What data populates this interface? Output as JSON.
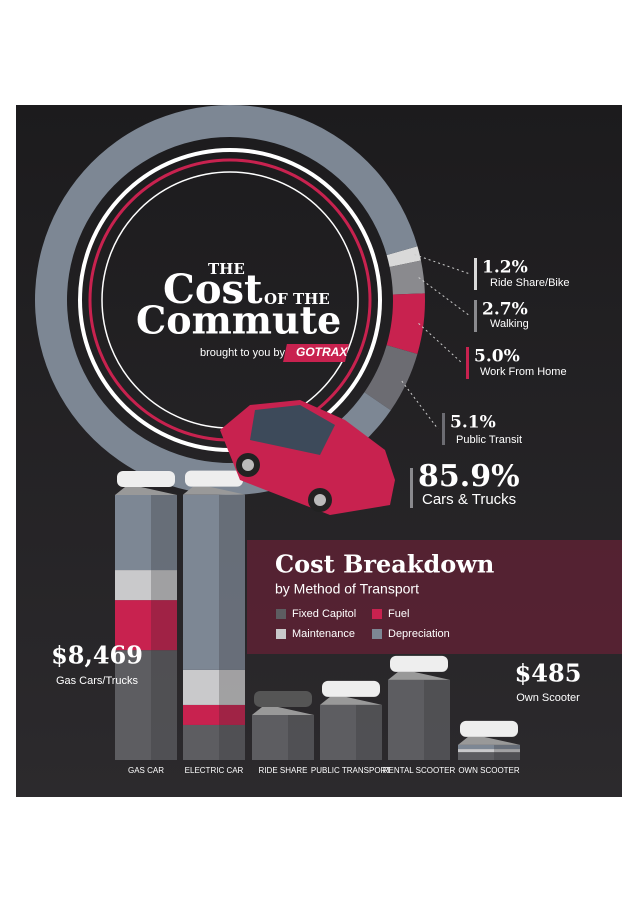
{
  "header": {
    "title_the": "THE",
    "title_cost": "Cost",
    "title_of_the": "OF THE",
    "title_commute": "Commute",
    "byline": "brought to you by",
    "brand": "GOTRAX"
  },
  "chart_data": [
    {
      "type": "pie",
      "categories": [
        "Ride Share/Bike",
        "Walking",
        "Work From Home",
        "Public Transit",
        "Cars & Trucks"
      ],
      "values": [
        1.2,
        2.7,
        5.0,
        5.1,
        85.9
      ],
      "value_labels": [
        "1.2%",
        "2.7%",
        "5.0%",
        "5.1%",
        "85.9%"
      ],
      "colors": [
        "#d9d9d9",
        "#8a8a8e",
        "#c8224f",
        "#6c6c72",
        "#7d8794"
      ]
    },
    {
      "type": "bar",
      "stacked": true,
      "title": "Cost Breakdown",
      "subtitle": "by Method of Transport",
      "categories": [
        "GAS CAR",
        "ELECTRIC CAR",
        "RIDE SHARE",
        "PUBLIC TRANSPORT",
        "RENTAL SCOOTER",
        "OWN SCOOTER"
      ],
      "series": [
        {
          "name": "Fixed Capitol",
          "color": "#5d5d61",
          "values": [
            3510,
            1120,
            1440,
            1760,
            2560,
            250
          ]
        },
        {
          "name": "Fuel",
          "color": "#c8224f",
          "values": [
            1600,
            640,
            0,
            0,
            0,
            0
          ]
        },
        {
          "name": "Maintenance",
          "color": "#c9c9cb",
          "values": [
            960,
            1120,
            0,
            0,
            0,
            100
          ]
        },
        {
          "name": "Depreciation",
          "color": "#7d8794",
          "values": [
            2400,
            5600,
            0,
            0,
            0,
            135
          ]
        }
      ],
      "annotations": [
        {
          "text": "$8,469",
          "caption": "Gas Cars/Trucks"
        },
        {
          "text": "$485",
          "caption": "Own Scooter"
        }
      ]
    }
  ]
}
